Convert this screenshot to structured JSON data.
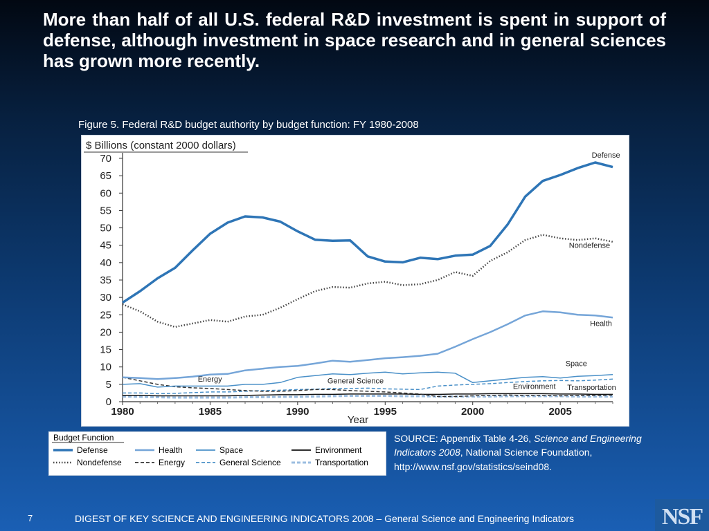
{
  "slide": {
    "headline": "More than half of all U.S. federal R&D investment is spent in support of defense, although investment in space research and in general sciences has grown more recently.",
    "number": "7",
    "footer": "DIGEST OF KEY SCIENCE AND ENGINEERING INDICATORS 2008 – General Science and Engineering Indicators",
    "logo_text": "NSF"
  },
  "source": {
    "prefix": "SOURCE: Appendix Table 4-26, ",
    "italic": "Science and Engineering Indicators 2008",
    "suffix": ", National Science Foundation, http://www.nsf.gov/statistics/seind08."
  },
  "chart_data": {
    "type": "line",
    "title": "Figure 5. Federal R&D budget authority by budget function: FY 1980-2008",
    "ylabel": "$ Billions (constant 2000 dollars)",
    "xlabel": "Year",
    "xlim": [
      1980,
      2008
    ],
    "ylim": [
      0,
      70
    ],
    "xticks": [
      1980,
      1985,
      1990,
      1995,
      2000,
      2005
    ],
    "yticks": [
      0,
      5,
      10,
      15,
      20,
      25,
      30,
      35,
      40,
      45,
      50,
      55,
      60,
      65,
      70
    ],
    "grid": false,
    "legend_title": "Budget Function",
    "legend_position": "bottom",
    "x": [
      1980,
      1981,
      1982,
      1983,
      1984,
      1985,
      1986,
      1987,
      1988,
      1989,
      1990,
      1991,
      1992,
      1993,
      1994,
      1995,
      1996,
      1997,
      1998,
      1999,
      2000,
      2001,
      2002,
      2003,
      2004,
      2005,
      2006,
      2007,
      2008
    ],
    "series": [
      {
        "name": "Defense",
        "label": "Defense",
        "label_x": 2006.8,
        "label_y": 70.2,
        "color": "#2e75b6",
        "style": "solid",
        "width": 3.5,
        "values": [
          28.5,
          31.8,
          35.5,
          38.5,
          43.5,
          48.3,
          51.5,
          53.3,
          53.0,
          51.8,
          49.0,
          46.6,
          46.3,
          46.4,
          41.8,
          40.3,
          40.1,
          41.4,
          41.0,
          42.0,
          42.3,
          44.8,
          51.0,
          59.0,
          63.5,
          65.2,
          67.2,
          68.8,
          67.5
        ]
      },
      {
        "name": "Nondefense",
        "label": "Nondefense",
        "label_x": 2005.5,
        "label_y": 44.2,
        "color": "#444444",
        "style": "dotted",
        "width": 2.5,
        "values": [
          28.0,
          26.0,
          23.0,
          21.5,
          22.5,
          23.5,
          23.0,
          24.5,
          25.0,
          27.0,
          29.5,
          31.8,
          33.0,
          32.8,
          34.0,
          34.5,
          33.5,
          33.8,
          35.0,
          37.3,
          36.2,
          40.5,
          43.0,
          46.5,
          48.0,
          47.0,
          46.5,
          47.0,
          46.0
        ]
      },
      {
        "name": "Health",
        "label": "Health",
        "label_x": 2006.7,
        "label_y": 21.8,
        "color": "#75a5d8",
        "style": "solid",
        "width": 2.5,
        "values": [
          7.0,
          6.8,
          6.5,
          6.8,
          7.2,
          7.8,
          8.0,
          9.0,
          9.5,
          10.0,
          10.3,
          11.0,
          11.8,
          11.5,
          12.0,
          12.5,
          12.8,
          13.2,
          13.8,
          15.8,
          18.0,
          20.0,
          22.3,
          24.8,
          26.0,
          25.7,
          25.0,
          24.8,
          24.2
        ]
      },
      {
        "name": "Space",
        "label": "Space",
        "label_x": 2005.3,
        "label_y": 10.2,
        "color": "#4a90c8",
        "style": "solid",
        "width": 1.5,
        "values": [
          5.0,
          5.2,
          4.2,
          4.5,
          4.5,
          4.5,
          4.5,
          5.0,
          5.0,
          5.5,
          7.0,
          7.5,
          8.0,
          7.8,
          8.2,
          8.5,
          8.0,
          8.3,
          8.5,
          8.2,
          5.5,
          6.0,
          6.5,
          7.0,
          7.2,
          6.8,
          7.3,
          7.5,
          7.8
        ]
      },
      {
        "name": "Energy",
        "label": "Energy",
        "label_x": 1984.3,
        "label_y": 5.8,
        "color": "#333333",
        "style": "dashed",
        "width": 1.5,
        "values": [
          7.0,
          6.0,
          5.0,
          4.3,
          4.0,
          3.8,
          3.5,
          3.2,
          3.0,
          3.0,
          3.2,
          3.5,
          3.5,
          3.2,
          3.0,
          2.8,
          2.5,
          2.2,
          1.5,
          1.5,
          1.7,
          1.8,
          1.9,
          1.8,
          1.8,
          1.7,
          1.8,
          1.8,
          1.9
        ]
      },
      {
        "name": "General Science",
        "label": "General Science",
        "label_x": 1991.7,
        "label_y": 5.3,
        "color": "#4a90c8",
        "style": "dashed",
        "width": 1.5,
        "values": [
          2.5,
          2.5,
          2.3,
          2.4,
          2.6,
          2.8,
          2.8,
          3.0,
          3.2,
          3.3,
          3.5,
          3.6,
          3.8,
          3.8,
          3.9,
          3.7,
          3.6,
          3.5,
          4.5,
          4.8,
          5.0,
          5.2,
          5.5,
          5.8,
          6.0,
          6.1,
          6.0,
          6.2,
          6.5
        ]
      },
      {
        "name": "Environment",
        "label": "Environment",
        "label_x": 2002.3,
        "label_y": 3.7,
        "color": "#111111",
        "style": "solid",
        "width": 1.5,
        "values": [
          1.8,
          1.8,
          1.7,
          1.7,
          1.7,
          1.7,
          1.7,
          1.8,
          1.9,
          2.0,
          2.0,
          2.1,
          2.1,
          2.2,
          2.2,
          2.2,
          2.2,
          2.1,
          2.1,
          2.2,
          2.2,
          2.3,
          2.3,
          2.3,
          2.3,
          2.2,
          2.2,
          2.1,
          2.1
        ]
      },
      {
        "name": "Transportation",
        "label": "Transportation",
        "label_x": 2005.4,
        "label_y": 3.4,
        "color": "#9bbde0",
        "style": "dashed",
        "width": 3,
        "values": [
          1.5,
          1.4,
          1.3,
          1.2,
          1.2,
          1.2,
          1.2,
          1.3,
          1.3,
          1.4,
          1.4,
          1.5,
          1.6,
          1.7,
          1.7,
          1.7,
          1.6,
          1.6,
          1.5,
          1.5,
          1.5,
          1.5,
          1.6,
          1.6,
          1.6,
          1.6,
          1.5,
          1.5,
          1.5
        ]
      }
    ],
    "legend_order": [
      "Defense",
      "Nondefense",
      "Health",
      "Energy",
      "Space",
      "General Science",
      "Environment",
      "Transportation"
    ]
  }
}
